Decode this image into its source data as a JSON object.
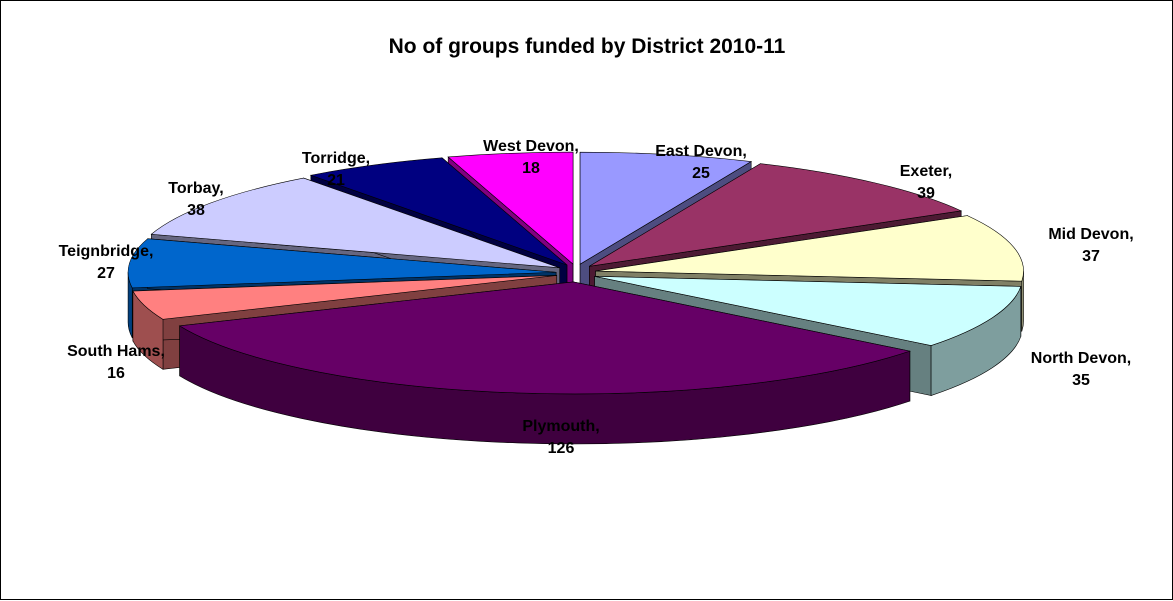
{
  "chart_data": {
    "type": "pie",
    "title": "No of groups funded by District 2010-11",
    "categories": [
      "East Devon",
      "Exeter",
      "Mid Devon",
      "North Devon",
      "Plymouth",
      "South Hams",
      "Teignbridge",
      "Torbay",
      "Torridge",
      "West Devon"
    ],
    "values": [
      25,
      39,
      37,
      35,
      126,
      16,
      27,
      38,
      21,
      18
    ],
    "labels": [
      {
        "name": "East Devon,",
        "value": "25"
      },
      {
        "name": "Exeter,",
        "value": "39"
      },
      {
        "name": "Mid Devon,",
        "value": "37"
      },
      {
        "name": "North Devon,",
        "value": "35"
      },
      {
        "name": "Plymouth,",
        "value": "126"
      },
      {
        "name": "South Hams,",
        "value": "16"
      },
      {
        "name": "Teignbridge,",
        "value": "27"
      },
      {
        "name": "Torbay,",
        "value": "38"
      },
      {
        "name": "Torridge,",
        "value": "21"
      },
      {
        "name": "West Devon,",
        "value": "18"
      }
    ],
    "colors": [
      "#9999FF",
      "#993366",
      "#FFFFCC",
      "#CCFFFF",
      "#660066",
      "#FF8080",
      "#0066CC",
      "#CCCCFF",
      "#000080",
      "#FF00FF"
    ],
    "style": "exploded-3d-pie",
    "legend": "none"
  }
}
